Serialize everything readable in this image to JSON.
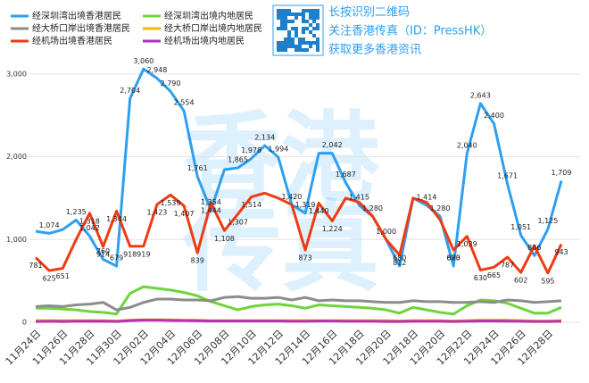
{
  "chart_data": {
    "type": "line",
    "categories": [
      "11月24日",
      null,
      "11月26日",
      null,
      "11月28日",
      null,
      "11月30日",
      null,
      "12月02日",
      null,
      "12月04日",
      null,
      "12月06日",
      null,
      "12月08日",
      null,
      "12月10日",
      null,
      "12月12日",
      null,
      "12月14日",
      null,
      "12月16日",
      null,
      "12月18日",
      null,
      "12月20日",
      null,
      "12月18日",
      null,
      "12月20日",
      null,
      "12月22日",
      null,
      "12月24日",
      null,
      "12月26日",
      null,
      "12月28日",
      null
    ],
    "ylim": [
      0,
      3300
    ],
    "yticks": [
      0,
      {
        "value": 1000,
        "label": "1,000"
      },
      {
        "value": 2000,
        "label": "2,000"
      },
      {
        "value": 3000,
        "label": "3,000"
      }
    ],
    "grid": true,
    "series": [
      {
        "name": "经深圳湾出境香港居民",
        "color": "#2e9ff0",
        "values": [
          1100,
          1074,
          1120,
          1235,
          1042,
          760,
          679,
          2704,
          3060,
          2948,
          2790,
          2554,
          1761,
          1354,
          1844,
          1865,
          1978,
          2134,
          1994,
          1420,
          1319,
          2042,
          2042,
          1687,
          1415,
          1280,
          1000,
          680,
          1500,
          1414,
          1280,
          680,
          2040,
          2643,
          2400,
          1671,
          1051,
          806,
          1125,
          1709
        ],
        "value_labels": [
          null,
          "1,074",
          null,
          "1,235",
          "1,042",
          "760",
          "679",
          "2,704",
          "3,060",
          "2,948",
          "2,790",
          "2,554",
          "1,761",
          "1,354",
          null,
          "1,865",
          "1,978",
          "2,134",
          "1,994",
          "1,420",
          "1,319",
          null,
          "2,042",
          "1,687",
          "1,415",
          "1,280",
          "1,000",
          "680",
          null,
          "1,414",
          "1,280",
          "680",
          "2,040",
          "2,643",
          "2,400",
          "1,671",
          "1,051",
          "806",
          "1,125",
          "1,709"
        ]
      },
      {
        "name": "经深圳湾出境内地居民",
        "color": "#6fd43a",
        "values": [
          170,
          170,
          160,
          150,
          130,
          120,
          100,
          350,
          430,
          410,
          390,
          360,
          320,
          250,
          200,
          150,
          190,
          210,
          220,
          200,
          170,
          210,
          200,
          190,
          180,
          170,
          150,
          110,
          180,
          150,
          120,
          100,
          200,
          270,
          260,
          230,
          170,
          110,
          110,
          180
        ]
      },
      {
        "name": "经大桥口岸出境香港居民",
        "color": "#8c8c8c",
        "values": [
          190,
          200,
          190,
          210,
          220,
          240,
          150,
          180,
          240,
          280,
          280,
          270,
          270,
          260,
          300,
          310,
          290,
          290,
          300,
          270,
          300,
          260,
          270,
          260,
          260,
          250,
          240,
          240,
          260,
          250,
          250,
          240,
          240,
          250,
          240,
          270,
          260,
          240,
          250,
          260
        ]
      },
      {
        "name": "经大桥口岸出境内地居民",
        "color": "#f2b800",
        "values": [
          20,
          20,
          20,
          20,
          20,
          20,
          15,
          25,
          30,
          30,
          30,
          25,
          25,
          20,
          20,
          20,
          20,
          20,
          20,
          20,
          20,
          20,
          20,
          20,
          20,
          20,
          20,
          15,
          20,
          20,
          20,
          15,
          20,
          25,
          25,
          25,
          20,
          15,
          15,
          20
        ]
      },
      {
        "name": "经机场出境香港居民",
        "color": "#f03a10",
        "values": [
          781,
          625,
          651,
          1000,
          1318,
          914,
          1344,
          918,
          919,
          1423,
          1539,
          1407,
          839,
          1444,
          1108,
          1307,
          1514,
          1560,
          1500,
          1420,
          873,
          1440,
          1224,
          1500,
          1450,
          1280,
          1000,
          812,
          1500,
          1450,
          1240,
          873,
          1039,
          630,
          665,
          787,
          602,
          925,
          595,
          943
        ],
        "value_labels": [
          "781",
          "625",
          "651",
          null,
          "1,318",
          "914",
          "1,344",
          "918",
          "919",
          "1,423",
          "1,539",
          "1,407",
          "839",
          "1,444",
          "1,108",
          "1,307",
          "1,514",
          null,
          null,
          null,
          "873",
          "1,440",
          "1,224",
          null,
          null,
          null,
          null,
          "812",
          null,
          null,
          null,
          "873",
          "1,039",
          "630",
          "665",
          "787",
          "602",
          null,
          "595",
          "943"
        ]
      },
      {
        "name": "经机场出境内地居民",
        "color": "#b62fb4",
        "values": [
          10,
          12,
          10,
          12,
          14,
          12,
          10,
          20,
          25,
          25,
          22,
          20,
          18,
          15,
          15,
          15,
          15,
          15,
          15,
          12,
          12,
          15,
          15,
          12,
          12,
          12,
          10,
          10,
          12,
          12,
          12,
          10,
          12,
          15,
          15,
          14,
          12,
          10,
          10,
          12
        ]
      }
    ]
  },
  "watermark": [
    "香港",
    "传真"
  ],
  "promo": [
    "长按识别二维码",
    "关注香港传真（ID：PressHK）",
    "获取更多香港资讯"
  ]
}
